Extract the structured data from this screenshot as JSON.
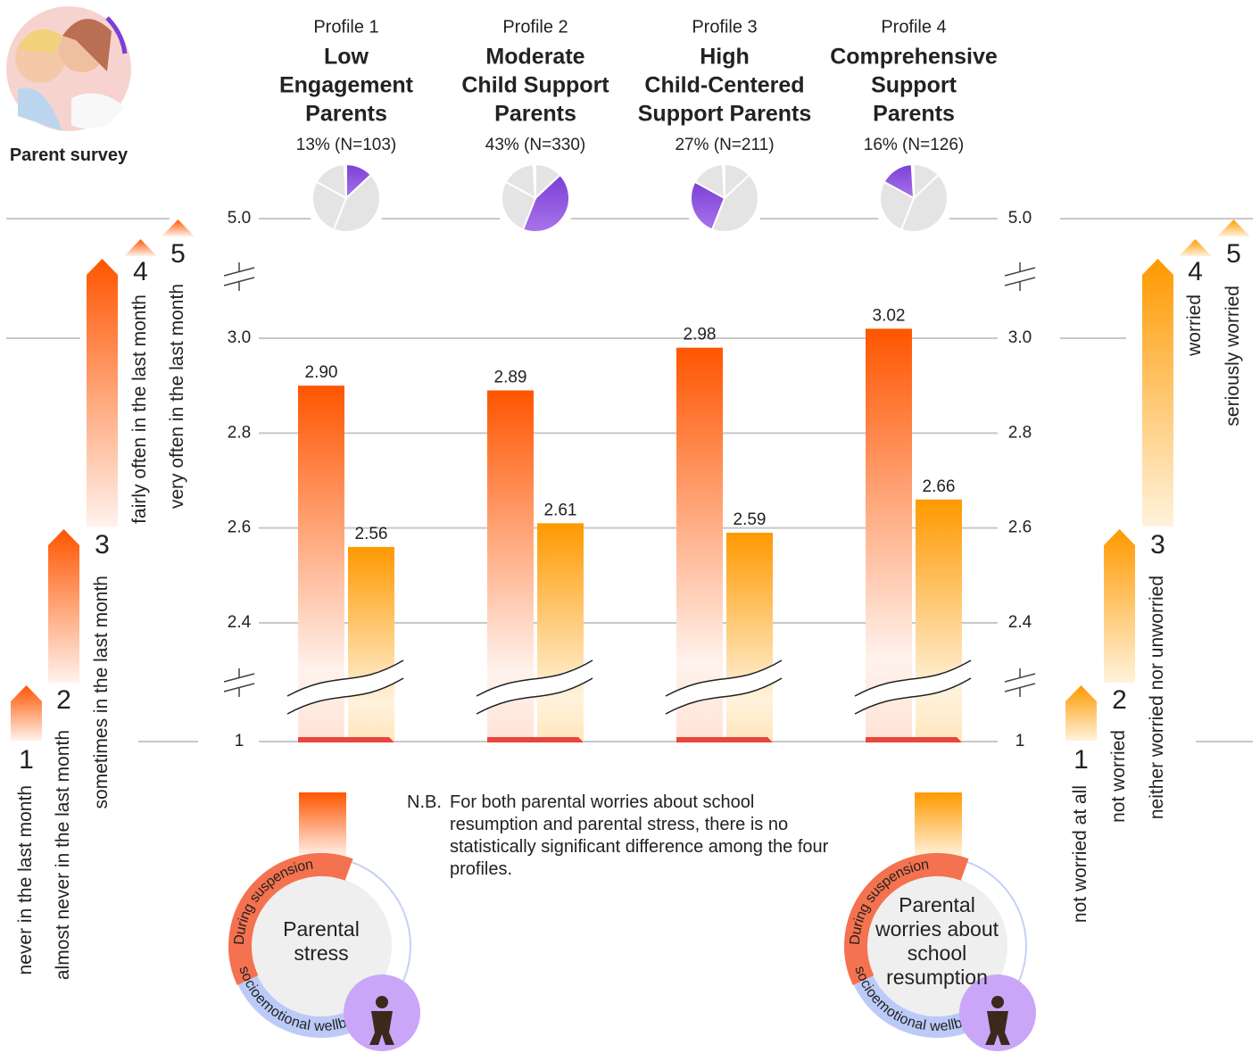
{
  "chart_data": {
    "type": "bar",
    "survey_label": "Parent survey",
    "categories": [
      "Profile 1",
      "Profile 2",
      "Profile 3",
      "Profile 4"
    ],
    "profiles": [
      {
        "name_lines": [
          "Low",
          "Engagement",
          "Parents"
        ],
        "share": 13,
        "share_label": "13% (N=103)"
      },
      {
        "name_lines": [
          "Moderate",
          "Child Support",
          "Parents"
        ],
        "share": 43,
        "share_label": "43% (N=330)"
      },
      {
        "name_lines": [
          "High",
          "Child-Centered",
          "Support Parents"
        ],
        "share": 27,
        "share_label": "27% (N=211)"
      },
      {
        "name_lines": [
          "Comprehensive",
          "Support",
          "Parents"
        ],
        "share": 16,
        "share_label": "16% (N=126)"
      }
    ],
    "pie_color": "#7b3fd6",
    "series": [
      {
        "name": "Parental stress",
        "color": "#ff5500",
        "values": [
          2.9,
          2.89,
          2.98,
          3.02
        ],
        "value_labels": [
          "2.90",
          "2.89",
          "2.98",
          "3.02"
        ],
        "scale": [
          {
            "value": 1,
            "label": "never in the last month"
          },
          {
            "value": 2,
            "label": "almost never in the last month"
          },
          {
            "value": 3,
            "label": "sometimes in the last month"
          },
          {
            "value": 4,
            "label": "fairly often in the last month"
          },
          {
            "value": 5,
            "label": "very often in the last month"
          }
        ]
      },
      {
        "name": "Parental worries about school resumption",
        "color": "#ff9900",
        "values": [
          2.56,
          2.61,
          2.59,
          2.66
        ],
        "value_labels": [
          "2.56",
          "2.61",
          "2.59",
          "2.66"
        ],
        "scale": [
          {
            "value": 1,
            "label": "not worried at all"
          },
          {
            "value": 2,
            "label": "not worried"
          },
          {
            "value": 3,
            "label": "neither worried nor unworried"
          },
          {
            "value": 4,
            "label": "worried"
          },
          {
            "value": 5,
            "label": "seriously worried"
          }
        ]
      }
    ],
    "ylim": [
      1,
      5
    ],
    "yticks": [
      1,
      2.4,
      2.6,
      2.8,
      {
        "value": 3,
        "label": "3.0"
      },
      {
        "value": 5,
        "label": "5.0"
      }
    ],
    "axis_break": true,
    "grid": true,
    "badge": {
      "top": "During suspension",
      "bottom": "socioemotional wellbeing"
    },
    "note_prefix": "N.B.",
    "note": "For both parental worries about school resumption and parental stress, there is no statistically significant difference among the four profiles."
  }
}
